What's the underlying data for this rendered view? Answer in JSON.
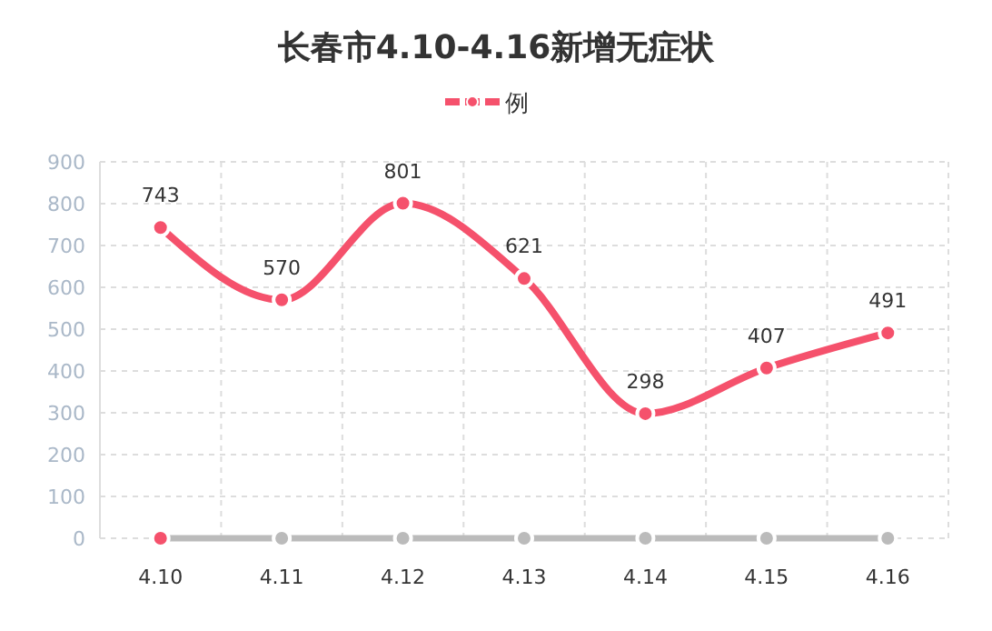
{
  "chart_data": {
    "type": "line",
    "title": "长春市4.10-4.16新增无症状",
    "categories": [
      "4.10",
      "4.11",
      "4.12",
      "4.13",
      "4.14",
      "4.15",
      "4.16"
    ],
    "series": [
      {
        "name": "例",
        "color": "#f5516c",
        "values": [
          743,
          570,
          801,
          621,
          298,
          407,
          491
        ],
        "value_labels": [
          "743",
          "570",
          "801",
          "621",
          "298",
          "407",
          "491"
        ]
      },
      {
        "color": "#bbbbbb",
        "values": [
          0,
          0,
          0,
          0,
          0,
          0,
          0
        ],
        "colors": [
          "#f5516c",
          "#bbbbbb",
          "#bbbbbb",
          "#bbbbbb",
          "#bbbbbb",
          "#bbbbbb",
          "#bbbbbb"
        ]
      }
    ],
    "ylim": [
      0,
      900
    ],
    "yticks": [
      0,
      100,
      200,
      300,
      400,
      500,
      600,
      700,
      800,
      900
    ],
    "grid": true,
    "legend": "top",
    "marker": "circle"
  }
}
